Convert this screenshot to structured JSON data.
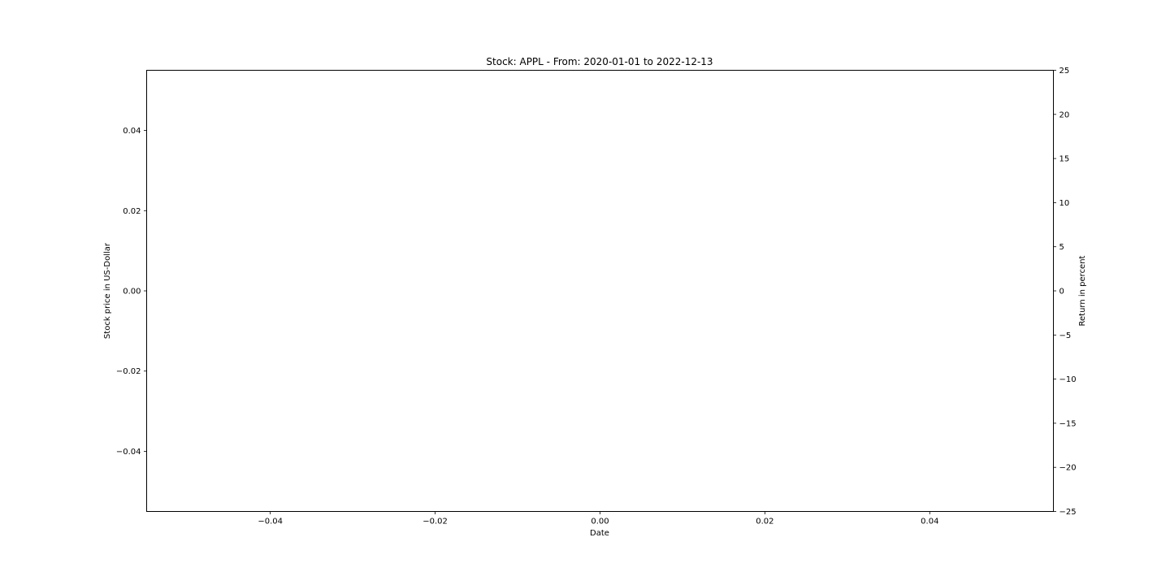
{
  "chart_data": {
    "type": "line",
    "title": "Stock: APPL - From: 2020-01-01 to 2022-12-13",
    "xlabel": "Date",
    "ylabel": "Stock price in US-Dollar",
    "y2label": "Return in percent",
    "xlim": [
      -0.055,
      0.055
    ],
    "ylim": [
      -0.055,
      0.055
    ],
    "y2lim": [
      -25,
      25
    ],
    "xticks": [
      -0.04,
      -0.02,
      0.0,
      0.02,
      0.04
    ],
    "xtick_labels": [
      "−0.04",
      "−0.02",
      "0.00",
      "0.02",
      "0.04"
    ],
    "yticks": [
      0.04,
      0.02,
      0.0,
      -0.02,
      -0.04
    ],
    "ytick_labels": [
      "0.04",
      "0.02",
      "0.00",
      "−0.02",
      "−0.04"
    ],
    "y2ticks": [
      25,
      20,
      15,
      10,
      5,
      0,
      -5,
      -10,
      -15,
      -20,
      -25
    ],
    "y2tick_labels": [
      "25",
      "20",
      "15",
      "10",
      "5",
      "0",
      "−5",
      "−10",
      "−15",
      "−20",
      "−25"
    ],
    "grid": false,
    "series": []
  }
}
